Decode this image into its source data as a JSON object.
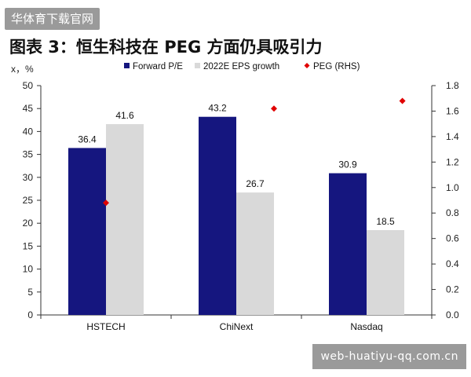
{
  "watermark_top": "华体育下载官网",
  "watermark_bottom": "web-huatiyu-qq.com.cn",
  "figure_title": "图表 3：恒生科技在 PEG 方面仍具吸引力",
  "colors": {
    "forward_pe": "#15167f",
    "eps_growth": "#d9d9d9",
    "peg": "#e00000",
    "axis": "#333333"
  },
  "chart_data": {
    "type": "bar",
    "categories": [
      "HSTECH",
      "ChiNext",
      "Nasdaq"
    ],
    "ylabel": "x，%",
    "ylim": [
      0,
      50
    ],
    "yticks": [
      0,
      5,
      10,
      15,
      20,
      25,
      30,
      35,
      40,
      45,
      50
    ],
    "y2lim": [
      0,
      1.8
    ],
    "y2ticks": [
      "0.0",
      "0.2",
      "0.4",
      "0.6",
      "0.8",
      "1.0",
      "1.2",
      "1.4",
      "1.6",
      "1.8"
    ],
    "legend_position": "top",
    "grid": false,
    "series": [
      {
        "name": "Forward P/E",
        "type": "bar",
        "axis": "left",
        "values": [
          36.4,
          43.2,
          30.9
        ],
        "labels": [
          "36.4",
          "43.2",
          "30.9"
        ]
      },
      {
        "name": "2022E EPS growth",
        "type": "bar",
        "axis": "left",
        "values": [
          41.6,
          26.7,
          18.5
        ],
        "labels": [
          "41.6",
          "26.7",
          "18.5"
        ]
      },
      {
        "name": "PEG (RHS)",
        "type": "scatter",
        "axis": "right",
        "values": [
          0.88,
          1.62,
          1.68
        ]
      }
    ]
  }
}
